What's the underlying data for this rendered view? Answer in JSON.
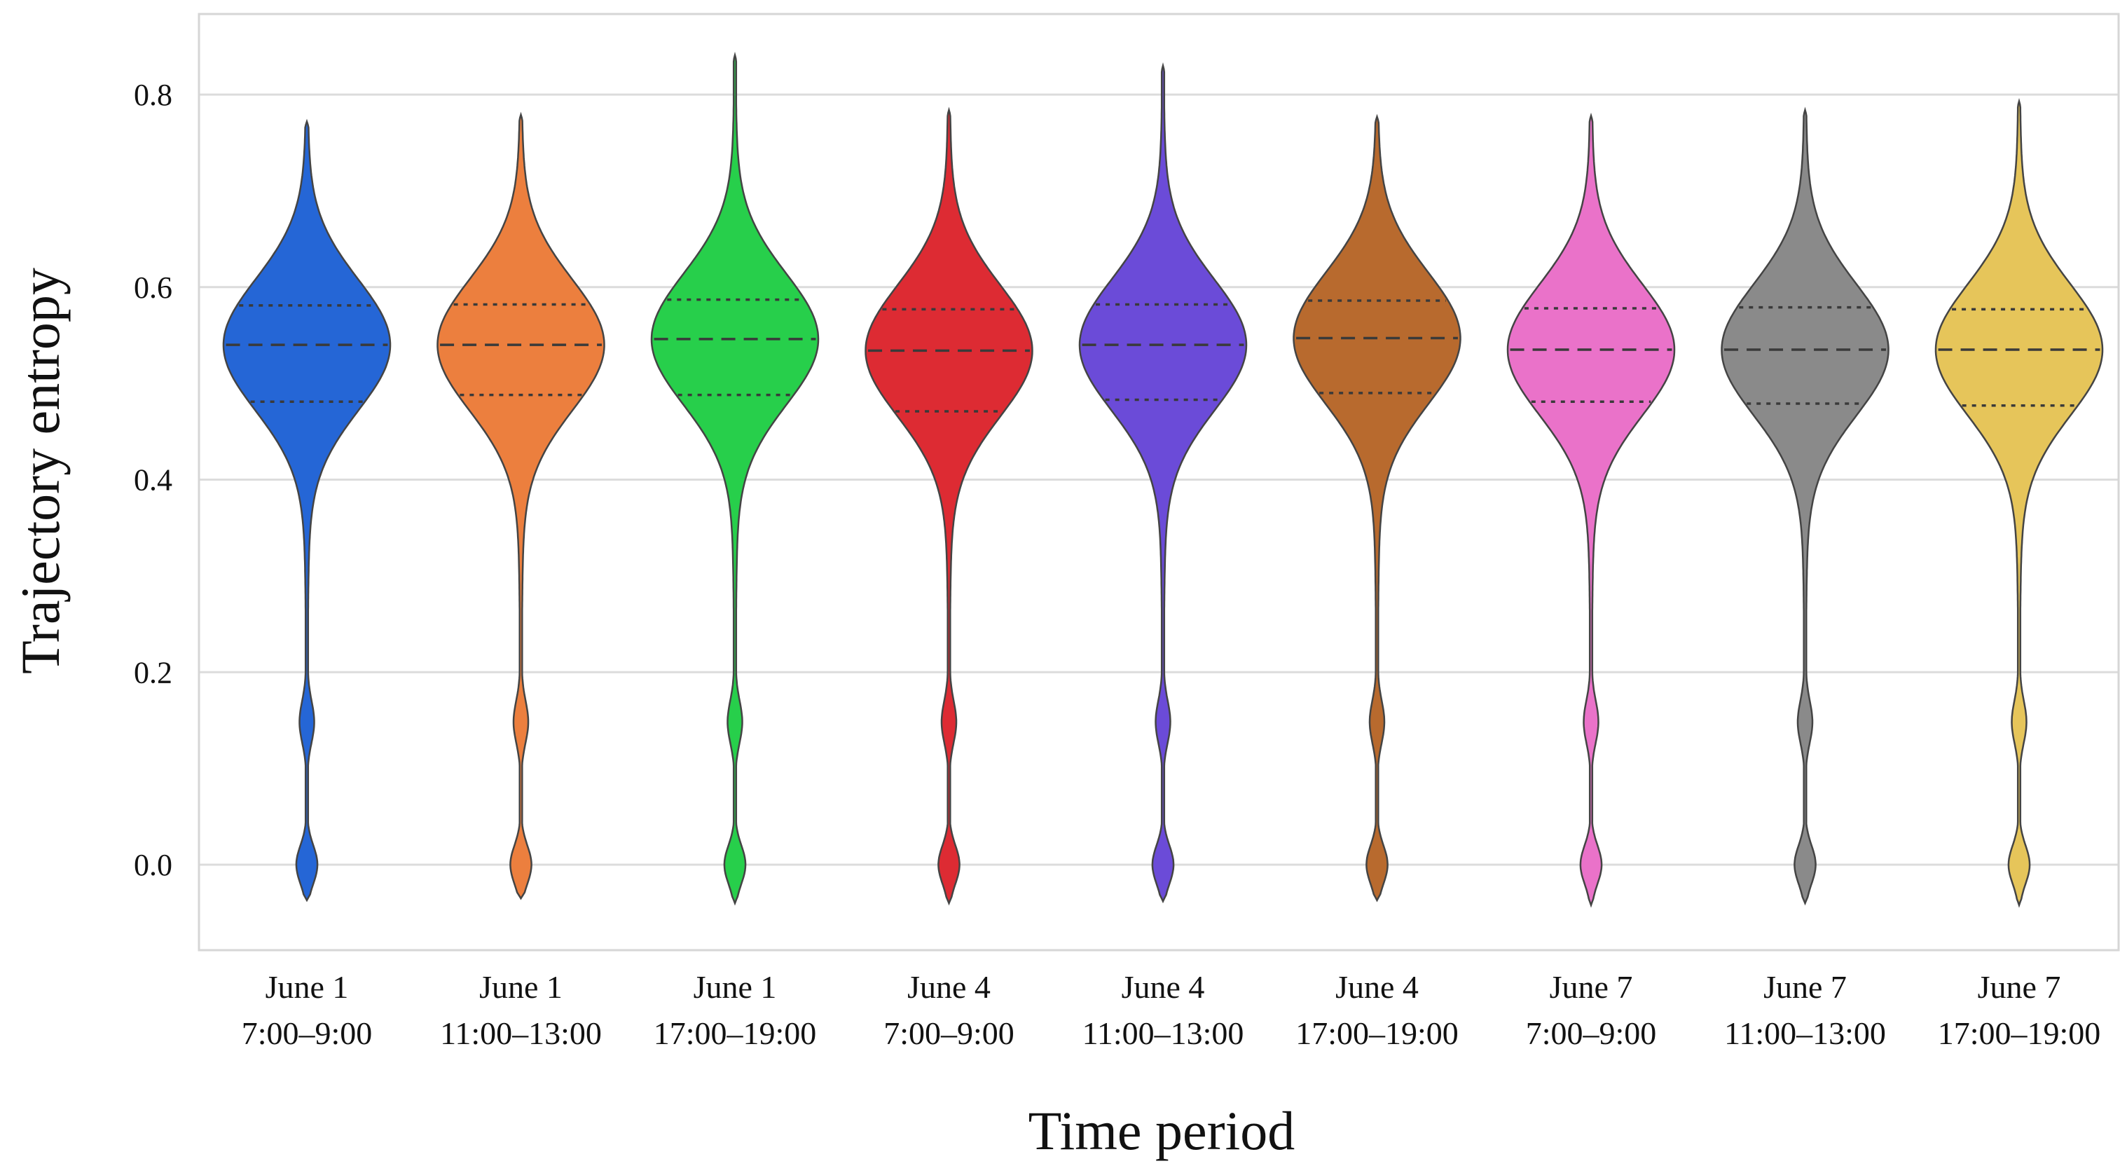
{
  "chart_data": {
    "type": "violin",
    "title": "",
    "xlabel": "Time period",
    "ylabel": "Trajectory entropy",
    "ylim": [
      -0.087,
      0.887
    ],
    "yticks": [
      0.0,
      0.2,
      0.4,
      0.6,
      0.8
    ],
    "ytick_labels": [
      "0.0",
      "0.2",
      "0.4",
      "0.6",
      "0.8"
    ],
    "grid": true,
    "inner": "quartile",
    "categories": [
      {
        "day": "June 1",
        "time": "7:00–9:00"
      },
      {
        "day": "June 1",
        "time": "11:00–13:00"
      },
      {
        "day": "June 1",
        "time": "17:00–19:00"
      },
      {
        "day": "June 4",
        "time": "7:00–9:00"
      },
      {
        "day": "June 4",
        "time": "11:00–13:00"
      },
      {
        "day": "June 4",
        "time": "17:00–19:00"
      },
      {
        "day": "June 7",
        "time": "7:00–9:00"
      },
      {
        "day": "June 7",
        "time": "11:00–13:00"
      },
      {
        "day": "June 7",
        "time": "17:00–19:00"
      }
    ],
    "series": [
      {
        "name": "June 1 7:00–9:00",
        "color": "#2566d6",
        "min": -0.037,
        "max": 0.772,
        "q1": 0.481,
        "median": 0.54,
        "q3": 0.581
      },
      {
        "name": "June 1 11:00–13:00",
        "color": "#ec7f3e",
        "min": -0.035,
        "max": 0.779,
        "q1": 0.488,
        "median": 0.54,
        "q3": 0.582
      },
      {
        "name": "June 1 17:00–19:00",
        "color": "#27cf4b",
        "min": -0.04,
        "max": 0.841,
        "q1": 0.488,
        "median": 0.546,
        "q3": 0.587
      },
      {
        "name": "June 4 7:00–9:00",
        "color": "#dd2b33",
        "min": -0.04,
        "max": 0.784,
        "q1": 0.471,
        "median": 0.534,
        "q3": 0.577
      },
      {
        "name": "June 4 11:00–13:00",
        "color": "#6b4bd8",
        "min": -0.038,
        "max": 0.83,
        "q1": 0.483,
        "median": 0.54,
        "q3": 0.582
      },
      {
        "name": "June 4 17:00–19:00",
        "color": "#b86a2e",
        "min": -0.037,
        "max": 0.777,
        "q1": 0.49,
        "median": 0.547,
        "q3": 0.586
      },
      {
        "name": "June 7 7:00–9:00",
        "color": "#ea72c9",
        "min": -0.042,
        "max": 0.778,
        "q1": 0.481,
        "median": 0.535,
        "q3": 0.578
      },
      {
        "name": "June 7 11:00–13:00",
        "color": "#8a8a8a",
        "min": -0.04,
        "max": 0.784,
        "q1": 0.479,
        "median": 0.535,
        "q3": 0.579
      },
      {
        "name": "June 7 17:00–19:00",
        "color": "#e6c55a",
        "min": -0.042,
        "max": 0.793,
        "q1": 0.477,
        "median": 0.535,
        "q3": 0.577
      }
    ]
  },
  "style": {
    "grid_color": "#dcdcdc",
    "frame_color": "#d6d6d6",
    "outline_color": "#444444"
  }
}
